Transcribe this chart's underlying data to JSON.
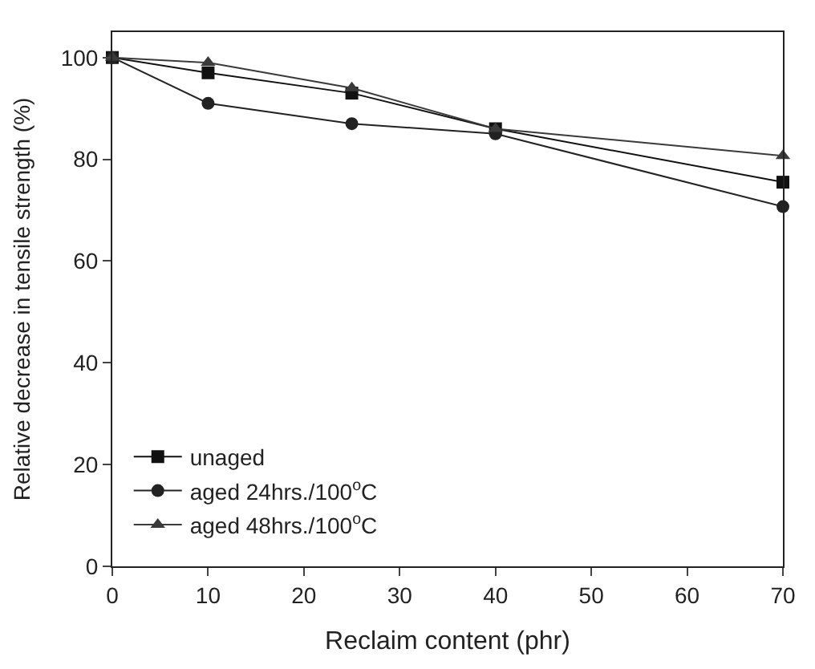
{
  "chart_data": {
    "type": "line",
    "xlabel": "Reclaim content (phr)",
    "ylabel": "Relative decrease in tensile strength (%)",
    "x": [
      0,
      10,
      25,
      40,
      70
    ],
    "series": [
      {
        "name": "unaged",
        "color": "#111111",
        "marker": "square",
        "values": [
          100,
          97,
          93,
          86,
          75.5
        ]
      },
      {
        "name": "aged 24hrs./100$^{o}$C",
        "color": "#222222",
        "marker": "circle",
        "values": [
          100,
          91,
          87,
          85,
          70.7
        ]
      },
      {
        "name": "aged 48hrs./100$^{o}$C",
        "color": "#3a3a3a",
        "marker": "triangle",
        "values": [
          100,
          99,
          94,
          86,
          80.7
        ]
      }
    ],
    "xlim": [
      0,
      70
    ],
    "xticks": [
      0,
      10,
      20,
      30,
      40,
      50,
      60,
      70
    ],
    "ylim": [
      0,
      105
    ],
    "yticks": [
      0,
      20,
      40,
      60,
      80,
      100
    ],
    "legend": "bottom left",
    "line_style": "solid"
  }
}
